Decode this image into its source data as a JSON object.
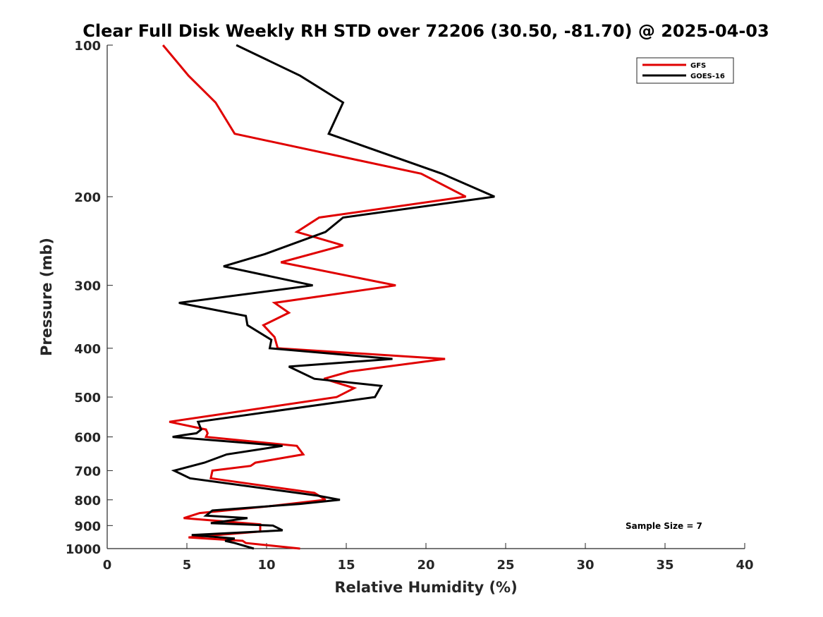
{
  "chart_data": {
    "type": "line",
    "title": "Clear Full Disk Weekly RH STD over 72206 (30.50, -81.70) @ 2025-04-03",
    "xlabel": "Relative Humidity (%)",
    "ylabel": "Pressure (mb)",
    "xlim": [
      0,
      40
    ],
    "ylim": [
      100,
      1000
    ],
    "y_scale": "log",
    "y_reversed": true,
    "x_ticks": [
      "0",
      "5",
      "10",
      "15",
      "20",
      "25",
      "30",
      "35",
      "40"
    ],
    "y_ticks": [
      "100",
      "200",
      "300",
      "400",
      "500",
      "600",
      "700",
      "800",
      "900",
      "1000"
    ],
    "grid": false,
    "legend_position": "top-right",
    "annotation": "Sample Size = 7",
    "series": [
      {
        "name": "GFS",
        "color": "#e00000",
        "points": [
          [
            3.5,
            100
          ],
          [
            5.1,
            115
          ],
          [
            6.8,
            130
          ],
          [
            8.0,
            150
          ],
          [
            19.7,
            180
          ],
          [
            22.5,
            200
          ],
          [
            13.3,
            220
          ],
          [
            11.9,
            235
          ],
          [
            14.8,
            250
          ],
          [
            10.9,
            270
          ],
          [
            18.1,
            300
          ],
          [
            10.5,
            325
          ],
          [
            11.4,
            340
          ],
          [
            9.8,
            360
          ],
          [
            10.5,
            380
          ],
          [
            10.7,
            400
          ],
          [
            21.2,
            420
          ],
          [
            15.2,
            445
          ],
          [
            13.6,
            460
          ],
          [
            15.5,
            480
          ],
          [
            14.4,
            500
          ],
          [
            3.9,
            560
          ],
          [
            6.2,
            580
          ],
          [
            6.3,
            590
          ],
          [
            6.2,
            600
          ],
          [
            11.9,
            625
          ],
          [
            12.3,
            650
          ],
          [
            9.3,
            675
          ],
          [
            9.0,
            685
          ],
          [
            6.6,
            700
          ],
          [
            6.5,
            725
          ],
          [
            13.0,
            775
          ],
          [
            13.7,
            800
          ],
          [
            10.0,
            825
          ],
          [
            5.8,
            850
          ],
          [
            4.8,
            870
          ],
          [
            9.6,
            895
          ],
          [
            9.6,
            925
          ],
          [
            5.1,
            950
          ],
          [
            8.5,
            965
          ],
          [
            8.7,
            975
          ],
          [
            12.1,
            1000
          ]
        ]
      },
      {
        "name": "GOES-16",
        "color": "#000000",
        "points": [
          [
            8.1,
            100
          ],
          [
            12.1,
            115
          ],
          [
            14.8,
            130
          ],
          [
            13.9,
            150
          ],
          [
            21.0,
            180
          ],
          [
            24.3,
            200
          ],
          [
            14.8,
            220
          ],
          [
            13.7,
            235
          ],
          [
            9.9,
            260
          ],
          [
            7.3,
            275
          ],
          [
            12.9,
            300
          ],
          [
            4.5,
            325
          ],
          [
            8.7,
            345
          ],
          [
            8.8,
            360
          ],
          [
            10.3,
            385
          ],
          [
            10.2,
            400
          ],
          [
            17.9,
            420
          ],
          [
            11.4,
            435
          ],
          [
            13.0,
            460
          ],
          [
            17.2,
            475
          ],
          [
            16.8,
            500
          ],
          [
            5.7,
            560
          ],
          [
            5.9,
            580
          ],
          [
            5.6,
            590
          ],
          [
            4.8,
            595
          ],
          [
            4.1,
            600
          ],
          [
            11.0,
            625
          ],
          [
            10.3,
            630
          ],
          [
            7.5,
            650
          ],
          [
            6.1,
            675
          ],
          [
            4.2,
            700
          ],
          [
            5.2,
            725
          ],
          [
            13.2,
            785
          ],
          [
            14.6,
            800
          ],
          [
            12.1,
            815
          ],
          [
            6.6,
            840
          ],
          [
            6.2,
            860
          ],
          [
            8.8,
            870
          ],
          [
            6.5,
            890
          ],
          [
            10.4,
            900
          ],
          [
            11.0,
            920
          ],
          [
            5.3,
            940
          ],
          [
            8.0,
            955
          ],
          [
            7.4,
            965
          ],
          [
            8.0,
            975
          ],
          [
            9.2,
            1000
          ]
        ]
      }
    ]
  }
}
